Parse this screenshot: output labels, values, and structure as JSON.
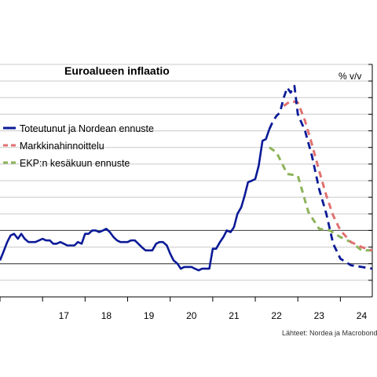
{
  "chart_data": {
    "type": "line",
    "title": "Euroalueen inflaatio",
    "unit_label": "% v/v",
    "source": "Lähteet: Nordea ja Macrobond",
    "x_labels": [
      "17",
      "18",
      "19",
      "20",
      "21",
      "22",
      "23",
      "24"
    ],
    "x_range": [
      2016.0,
      2024.75
    ],
    "ylim": [
      -2,
      12
    ],
    "y_gridlines": [
      -2,
      -1,
      0,
      1,
      2,
      3,
      4,
      5,
      6,
      7,
      8,
      9,
      10,
      11,
      12
    ],
    "y_reference_lines": [
      0,
      2
    ],
    "colors": {
      "actual": "#0b1a96",
      "market": "#e07070",
      "ecb": "#8db35a",
      "grid": "#c9c9c9",
      "reference": "#555555"
    },
    "series": [
      {
        "name": "Toteutunut ja Nordean ennuste",
        "style": "solid-then-dashed",
        "forecast_from": 2022.33,
        "points": [
          [
            2016.0,
            0.2
          ],
          [
            2016.08,
            0.7
          ],
          [
            2016.17,
            1.3
          ],
          [
            2016.25,
            1.7
          ],
          [
            2016.33,
            1.8
          ],
          [
            2016.42,
            1.5
          ],
          [
            2016.5,
            1.8
          ],
          [
            2016.58,
            1.5
          ],
          [
            2016.67,
            1.3
          ],
          [
            2016.75,
            1.3
          ],
          [
            2016.83,
            1.3
          ],
          [
            2016.92,
            1.4
          ],
          [
            2017.0,
            1.5
          ],
          [
            2017.08,
            1.4
          ],
          [
            2017.17,
            1.4
          ],
          [
            2017.25,
            1.2
          ],
          [
            2017.33,
            1.2
          ],
          [
            2017.42,
            1.3
          ],
          [
            2017.5,
            1.2
          ],
          [
            2017.58,
            1.1
          ],
          [
            2017.67,
            1.1
          ],
          [
            2017.75,
            1.1
          ],
          [
            2017.83,
            1.3
          ],
          [
            2017.92,
            1.2
          ],
          [
            2018.0,
            1.8
          ],
          [
            2018.08,
            1.8
          ],
          [
            2018.17,
            2.0
          ],
          [
            2018.25,
            2.0
          ],
          [
            2018.33,
            1.9
          ],
          [
            2018.42,
            2.0
          ],
          [
            2018.5,
            2.1
          ],
          [
            2018.58,
            1.9
          ],
          [
            2018.67,
            1.6
          ],
          [
            2018.75,
            1.4
          ],
          [
            2018.83,
            1.3
          ],
          [
            2018.92,
            1.3
          ],
          [
            2019.0,
            1.3
          ],
          [
            2019.08,
            1.4
          ],
          [
            2019.17,
            1.4
          ],
          [
            2019.25,
            1.2
          ],
          [
            2019.33,
            1.0
          ],
          [
            2019.42,
            0.8
          ],
          [
            2019.5,
            0.8
          ],
          [
            2019.58,
            0.8
          ],
          [
            2019.67,
            1.2
          ],
          [
            2019.75,
            1.3
          ],
          [
            2019.83,
            1.3
          ],
          [
            2019.92,
            1.1
          ],
          [
            2020.0,
            0.6
          ],
          [
            2020.08,
            0.2
          ],
          [
            2020.17,
            0.0
          ],
          [
            2020.25,
            -0.3
          ],
          [
            2020.33,
            -0.2
          ],
          [
            2020.42,
            -0.2
          ],
          [
            2020.5,
            -0.2
          ],
          [
            2020.58,
            -0.3
          ],
          [
            2020.67,
            -0.4
          ],
          [
            2020.75,
            -0.3
          ],
          [
            2020.83,
            -0.3
          ],
          [
            2020.92,
            -0.3
          ],
          [
            2021.0,
            0.9
          ],
          [
            2021.08,
            0.9
          ],
          [
            2021.17,
            1.3
          ],
          [
            2021.25,
            1.6
          ],
          [
            2021.33,
            2.0
          ],
          [
            2021.42,
            1.9
          ],
          [
            2021.5,
            2.2
          ],
          [
            2021.58,
            3.0
          ],
          [
            2021.67,
            3.4
          ],
          [
            2021.75,
            4.1
          ],
          [
            2021.83,
            4.9
          ],
          [
            2021.92,
            5.0
          ],
          [
            2022.0,
            5.1
          ],
          [
            2022.08,
            5.9
          ],
          [
            2022.17,
            7.4
          ],
          [
            2022.25,
            7.5
          ],
          [
            2022.33,
            8.1
          ],
          [
            2022.42,
            8.6
          ],
          [
            2022.5,
            8.9
          ],
          [
            2022.58,
            9.1
          ],
          [
            2022.67,
            10.0
          ],
          [
            2022.75,
            10.6
          ],
          [
            2022.83,
            10.3
          ],
          [
            2022.92,
            10.7
          ],
          [
            2023.0,
            9.0
          ],
          [
            2023.17,
            8.0
          ],
          [
            2023.33,
            6.5
          ],
          [
            2023.5,
            4.5
          ],
          [
            2023.67,
            3.0
          ],
          [
            2023.83,
            1.2
          ],
          [
            2024.0,
            0.3
          ],
          [
            2024.25,
            -0.1
          ],
          [
            2024.5,
            -0.2
          ],
          [
            2024.75,
            -0.3
          ]
        ]
      },
      {
        "name": "Markkinahinnoittelu",
        "style": "dashed",
        "points": [
          [
            2022.67,
            9.5
          ],
          [
            2022.83,
            9.8
          ],
          [
            2023.0,
            9.7
          ],
          [
            2023.17,
            8.6
          ],
          [
            2023.33,
            7.2
          ],
          [
            2023.5,
            5.6
          ],
          [
            2023.67,
            4.1
          ],
          [
            2023.83,
            2.9
          ],
          [
            2024.0,
            2.0
          ],
          [
            2024.25,
            1.3
          ],
          [
            2024.5,
            1.0
          ],
          [
            2024.75,
            0.8
          ]
        ]
      },
      {
        "name": "EKP:n kesäkuun ennuste",
        "style": "dashed",
        "points": [
          [
            2022.33,
            7.0
          ],
          [
            2022.5,
            6.7
          ],
          [
            2022.75,
            5.4
          ],
          [
            2023.0,
            5.3
          ],
          [
            2023.25,
            3.1
          ],
          [
            2023.5,
            2.1
          ],
          [
            2023.75,
            2.0
          ],
          [
            2024.0,
            1.6
          ],
          [
            2024.25,
            1.3
          ],
          [
            2024.5,
            0.8
          ],
          [
            2024.75,
            0.8
          ]
        ]
      }
    ],
    "legend_position": "left-middle"
  }
}
